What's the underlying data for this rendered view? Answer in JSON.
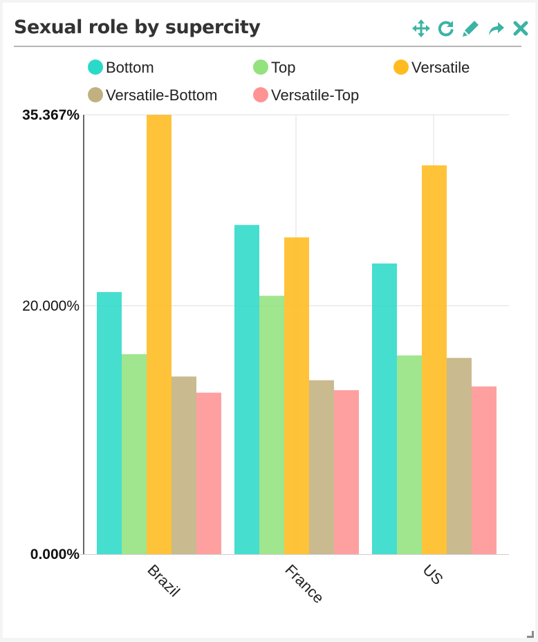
{
  "header": {
    "title": "Sexual role by supercity"
  },
  "toolbar": [
    {
      "name": "move-icon"
    },
    {
      "name": "refresh-icon"
    },
    {
      "name": "edit-icon"
    },
    {
      "name": "share-icon"
    },
    {
      "name": "close-icon"
    }
  ],
  "colors": {
    "toolbar_icon": "#3bb3a5",
    "Bottom": "#2bd9c8",
    "Top": "#93e27e",
    "Versatile": "#ffbb1f",
    "Versatile-Bottom": "#c1b180",
    "Versatile-Top": "#ff9393"
  },
  "chart_data": {
    "type": "bar",
    "title": "Sexual role by supercity",
    "categories": [
      "Brazil",
      "France",
      "US"
    ],
    "series": [
      {
        "name": "Bottom",
        "values": [
          21.1,
          26.5,
          23.4
        ]
      },
      {
        "name": "Top",
        "values": [
          16.1,
          20.8,
          16.0
        ]
      },
      {
        "name": "Versatile",
        "values": [
          35.367,
          25.5,
          31.3
        ]
      },
      {
        "name": "Versatile-Bottom",
        "values": [
          14.3,
          14.0,
          15.8
        ]
      },
      {
        "name": "Versatile-Top",
        "values": [
          13.0,
          13.2,
          13.5
        ]
      }
    ],
    "yticks": [
      {
        "value": 35.367,
        "label": "35.367%"
      },
      {
        "value": 20,
        "label": "20.000%"
      },
      {
        "value": 0,
        "label": "0.000%"
      }
    ],
    "ylim": [
      0,
      35.367
    ],
    "xlabel": "",
    "ylabel": "",
    "grid": true,
    "legend_position": "top"
  }
}
